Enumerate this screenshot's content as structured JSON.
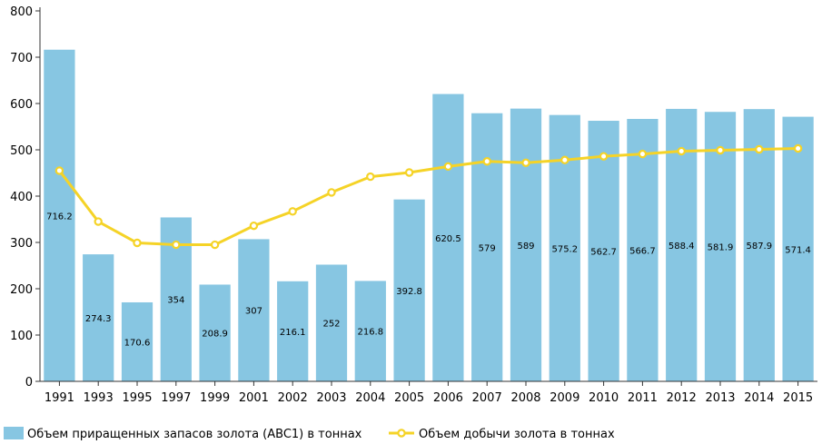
{
  "chart_data": {
    "type": "bar",
    "categories": [
      "1991",
      "1993",
      "1995",
      "1997",
      "1999",
      "2001",
      "2002",
      "2003",
      "2004",
      "2005",
      "2006",
      "2007",
      "2008",
      "2009",
      "2010",
      "2011",
      "2012",
      "2013",
      "2014",
      "2015"
    ],
    "series": [
      {
        "name": "Объем приращенных запасов золота (ABC1) в тоннах",
        "type": "bar",
        "values": [
          716.2,
          274.3,
          170.6,
          354,
          208.9,
          307,
          216.1,
          252,
          216.8,
          392.8,
          620.5,
          579,
          589,
          575.2,
          562.7,
          566.7,
          588.4,
          581.9,
          587.9,
          571.4
        ],
        "labels": [
          "716.2",
          "274.3",
          "170.6",
          "354",
          "208.9",
          "307",
          "216.1",
          "252",
          "216.8",
          "392.8",
          "620.5",
          "579",
          "589",
          "575.2",
          "562.7",
          "566.7",
          "588.4",
          "581.9",
          "587.9",
          "571.4"
        ],
        "color": "#87c6e2"
      },
      {
        "name": "Объем добычи золота в тоннах",
        "type": "line",
        "values": [
          455,
          345,
          299,
          295,
          295,
          336,
          367,
          408,
          442,
          451,
          464,
          475,
          472,
          478,
          486,
          491,
          497,
          499,
          501,
          503
        ],
        "color": "#f5d327"
      }
    ],
    "y_ticks": [
      "0",
      "100",
      "200",
      "300",
      "400",
      "500",
      "600",
      "700",
      "800"
    ],
    "ylim": [
      0,
      800
    ],
    "grid": false,
    "legend": "bottom"
  }
}
